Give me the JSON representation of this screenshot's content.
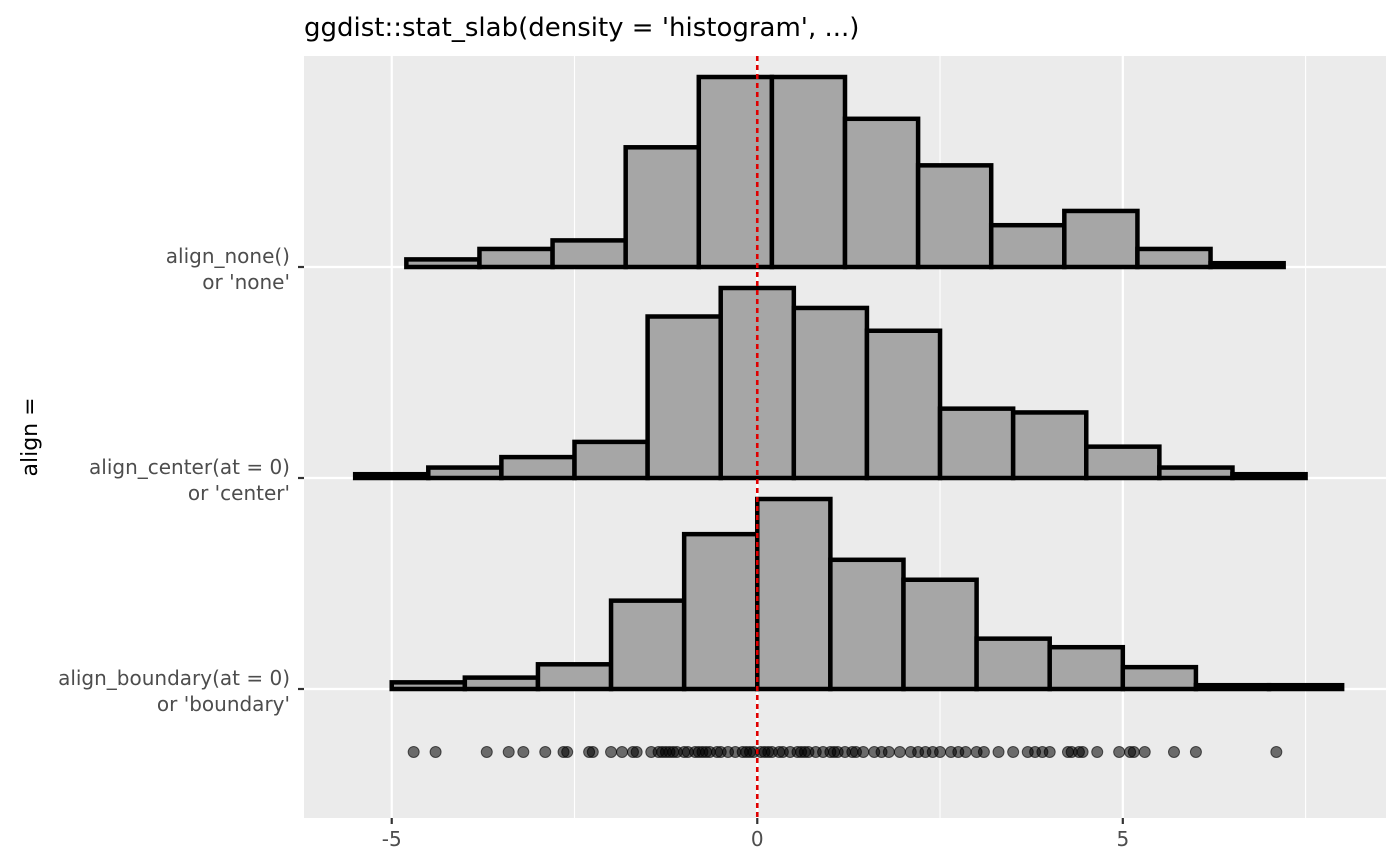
{
  "chart_data": {
    "type": "histogram",
    "title": "ggdist::stat_slab(density = 'histogram', ...)",
    "xlabel": "",
    "ylabel": "align =",
    "xlim": [
      -6.2,
      8.6
    ],
    "x_ticks": [
      -5,
      0,
      5
    ],
    "grid": true,
    "reference_line": {
      "x": 0,
      "color": "#e00000",
      "style": "dotted"
    },
    "colors": {
      "panel": "#ebebeb",
      "grid": "#ffffff",
      "slab_fill": "#a6a6a6",
      "slab_outline": "#000000",
      "points": "#000000"
    },
    "rows": [
      {
        "label_line1": "align_none()",
        "label_line2": "or 'none'",
        "breaks": [
          -4.8,
          -3.8,
          -2.8,
          -1.8,
          -0.8,
          0.2,
          1.2,
          2.2,
          3.2,
          4.2,
          5.2,
          6.2,
          7.2
        ],
        "heights": [
          0.04,
          0.095,
          0.14,
          0.63,
          1.0,
          1.0,
          0.78,
          0.535,
          0.22,
          0.295,
          0.095,
          0.02
        ]
      },
      {
        "label_line1": "align_center(at = 0)",
        "label_line2": "or 'center'",
        "breaks": [
          -5.5,
          -4.5,
          -3.5,
          -2.5,
          -1.5,
          -0.5,
          0.5,
          1.5,
          2.5,
          3.5,
          4.5,
          5.5,
          6.5,
          7.5
        ],
        "heights": [
          0.02,
          0.055,
          0.11,
          0.19,
          0.85,
          1.0,
          0.895,
          0.775,
          0.365,
          0.345,
          0.165,
          0.055,
          0.02
        ]
      },
      {
        "label_line1": "align_boundary(at = 0)",
        "label_line2": "or 'boundary'",
        "breaks": [
          -5,
          -4,
          -3,
          -2,
          -1,
          0,
          1,
          2,
          3,
          4,
          5,
          6,
          7,
          8
        ],
        "heights": [
          0.035,
          0.06,
          0.13,
          0.465,
          0.815,
          1.0,
          0.68,
          0.575,
          0.265,
          0.22,
          0.115,
          0.02,
          0.02
        ]
      }
    ],
    "points": [
      -4.7,
      -4.4,
      -3.7,
      -3.4,
      -3.2,
      -2.9,
      -2.65,
      -2.6,
      -2.3,
      -2.25,
      -2.0,
      -1.85,
      -1.7,
      -1.65,
      -1.45,
      -1.35,
      -1.3,
      -1.25,
      -1.2,
      -1.15,
      -1.1,
      -1.0,
      -0.95,
      -0.85,
      -0.8,
      -0.75,
      -0.7,
      -0.65,
      -0.55,
      -0.5,
      -0.4,
      -0.3,
      -0.2,
      -0.15,
      -0.1,
      -0.05,
      0.05,
      0.1,
      0.15,
      0.2,
      0.3,
      0.35,
      0.45,
      0.55,
      0.6,
      0.65,
      0.7,
      0.8,
      0.9,
      1.0,
      1.05,
      1.1,
      1.2,
      1.3,
      1.35,
      1.45,
      1.6,
      1.7,
      1.8,
      1.95,
      2.1,
      2.2,
      2.3,
      2.4,
      2.5,
      2.65,
      2.75,
      2.85,
      3.0,
      3.1,
      3.3,
      3.5,
      3.7,
      3.8,
      3.9,
      4.0,
      4.25,
      4.3,
      4.4,
      4.45,
      4.65,
      4.95,
      5.1,
      5.15,
      5.3,
      5.7,
      6.0,
      7.1
    ]
  }
}
